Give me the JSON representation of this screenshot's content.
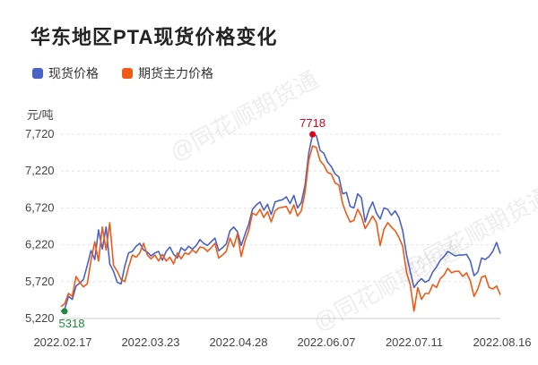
{
  "title": "华东地区PTA现货价格变化",
  "watermark": "@同花顺期货通",
  "unit_label": "元/吨",
  "colors": {
    "spot": "#4a62c6",
    "futures": "#f05a14",
    "max_marker": "#e0001b",
    "min_marker": "#1e8a3c"
  },
  "chart_data": {
    "type": "line",
    "title": "华东地区PTA现货价格变化",
    "ylabel": "元/吨",
    "xlabel": "",
    "ylim": [
      5220,
      7720
    ],
    "yticks": [
      "7,720",
      "7,220",
      "6,720",
      "6,220",
      "5,720",
      "5,220"
    ],
    "ytick_values": [
      7720,
      7220,
      6720,
      6220,
      5720,
      5220
    ],
    "xticks": [
      "2022.02.17",
      "2022.03.23",
      "2022.04.28",
      "2022.06.07",
      "2022.07.11",
      "2022.08.16"
    ],
    "grid": "horizontal",
    "legend": "top-left",
    "max_label": "7718",
    "min_label": "5318",
    "series": [
      {
        "name": "现货价格",
        "key": "spot",
        "values": [
          5318,
          5350,
          5520,
          5480,
          5660,
          5700,
          5750,
          5940,
          6140,
          6020,
          6420,
          6160,
          6460,
          5960,
          5860,
          5710,
          5690,
          5930,
          6110,
          6130,
          6200,
          6240,
          6150,
          6120,
          6070,
          6110,
          6130,
          6010,
          6130,
          6190,
          6090,
          6040,
          6180,
          6140,
          6200,
          6160,
          6210,
          6290,
          6240,
          6210,
          6260,
          6310,
          6140,
          6180,
          6230,
          6410,
          6460,
          6400,
          6210,
          6360,
          6500,
          6700,
          6760,
          6800,
          6690,
          6770,
          6630,
          6800,
          6820,
          6830,
          6870,
          6780,
          6890,
          6720,
          6790,
          7030,
          7470,
          7718,
          7700,
          7500,
          7460,
          7340,
          7280,
          7180,
          7140,
          6910,
          6930,
          6740,
          6720,
          6910,
          6860,
          6530,
          6690,
          6800,
          6650,
          6570,
          6720,
          6700,
          6620,
          6680,
          6590,
          6410,
          6090,
          5860,
          5640,
          5710,
          5760,
          5710,
          5740,
          5850,
          5920,
          6010,
          6060,
          6130,
          6100,
          6070,
          6080,
          6080,
          6090,
          6000,
          5800,
          5850,
          6040,
          6020,
          6060,
          6130,
          6250,
          6100
        ]
      },
      {
        "name": "期货主力价格",
        "key": "futures",
        "values": [
          5380,
          5420,
          5560,
          5520,
          5790,
          5710,
          5650,
          5690,
          6010,
          6260,
          6000,
          6460,
          6150,
          6520,
          5940,
          5860,
          5750,
          5720,
          5920,
          6080,
          6050,
          6110,
          6240,
          6080,
          6030,
          6080,
          6000,
          6090,
          6000,
          6050,
          5960,
          6110,
          6030,
          6110,
          6090,
          6150,
          6110,
          6190,
          6180,
          6130,
          6180,
          6240,
          6040,
          6080,
          6130,
          6310,
          6190,
          6370,
          6060,
          6270,
          6410,
          6650,
          6620,
          6700,
          6590,
          6670,
          6530,
          6680,
          6720,
          6730,
          6740,
          6640,
          6760,
          6610,
          6680,
          6930,
          7370,
          7560,
          7540,
          7360,
          7300,
          7200,
          7180,
          7060,
          7030,
          6780,
          6640,
          6530,
          6550,
          6700,
          6610,
          6440,
          6520,
          6610,
          6520,
          6210,
          6430,
          6520,
          6460,
          6410,
          6320,
          6200,
          5850,
          5680,
          5320,
          5640,
          5480,
          5560,
          5560,
          5680,
          5640,
          5760,
          5810,
          5900,
          5840,
          5860,
          5860,
          5790,
          5840,
          5730,
          5520,
          5620,
          5780,
          5800,
          5640,
          5620,
          5660,
          5540
        ]
      }
    ]
  }
}
